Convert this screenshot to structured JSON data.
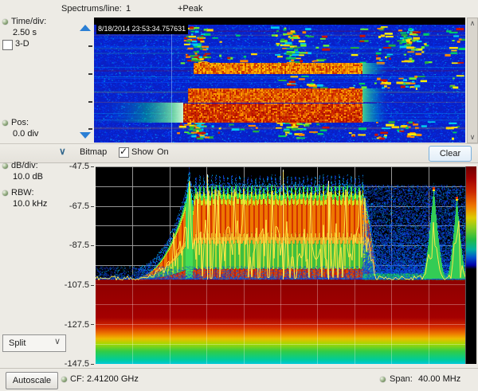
{
  "colors": {
    "accent_blue": "#2b7fd4",
    "panel_bg": "#edebe5",
    "plot_bg": "#000000",
    "trace_yellow": "#ffe84a"
  },
  "icons": {
    "chevron_up": "∧",
    "chevron_down": "∨",
    "section_chevron": "∨"
  },
  "top_bar": {
    "spectrums_label": "Spectrums/line:",
    "spectrums_value": "1",
    "detector": "+Peak"
  },
  "spectrogram": {
    "time_div_label": "Time/div:",
    "time_div_value": "2.50 s",
    "threed_label": "3-D",
    "pos_label": "Pos:",
    "pos_value": "0.0 div",
    "timestamp": "8/18/2014 23:53:34.757631"
  },
  "bitmap_bar": {
    "title": "Bitmap",
    "show_label": "Show",
    "on_label": "On",
    "clear_label": "Clear"
  },
  "spectrum": {
    "db_div_label": "dB/div:",
    "db_div_value": "10.0 dB",
    "rbw_label": "RBW:",
    "rbw_value": "10.0 kHz",
    "y_axis_ticks": [
      "-47.5",
      "-67.5",
      "-87.5",
      "-107.5",
      "-127.5",
      "-147.5"
    ]
  },
  "view_selector": {
    "label": "Split"
  },
  "bottom_bar": {
    "autoscale_label": "Autoscale",
    "cf_label": "CF:",
    "cf_value": "2.41200 GHz",
    "span_label": "Span:",
    "span_value": "40.00 MHz"
  }
}
